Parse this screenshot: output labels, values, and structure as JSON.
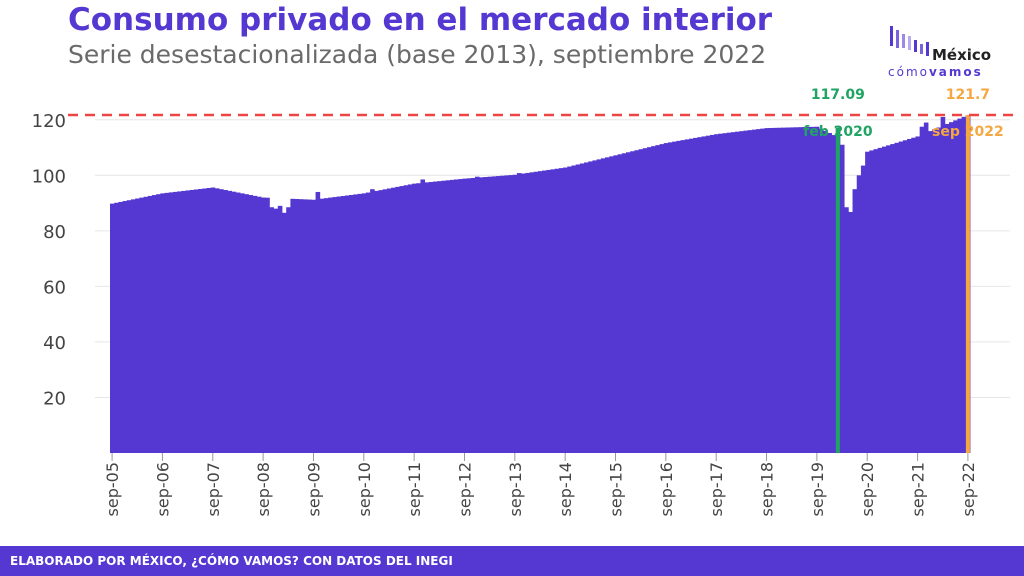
{
  "header": {
    "title": "Consumo privado en el mercado interior",
    "subtitle": "Serie desestacionalizada (base 2013), septiembre 2022"
  },
  "logo": {
    "top": "México",
    "bottom_light": "cómo",
    "bottom_bold": "vamos"
  },
  "footer": {
    "text": "ELABORADO POR MÉXICO, ¿CÓMO VAMOS? CON DATOS DEL INEGI"
  },
  "colors": {
    "bar": "#5438d1",
    "reference_line": "#f04444",
    "highlight_feb2020": "#1fa463",
    "highlight_latest": "#f5a742",
    "grid": "#e6e6e6",
    "axis_text": "#444444"
  },
  "chart_data": {
    "type": "bar",
    "title": "Consumo privado en el mercado interior",
    "subtitle": "Serie desestacionalizada (base 2013), septiembre 2022",
    "xlabel": "",
    "ylabel": "",
    "ylim": [
      0,
      130
    ],
    "yticks": [
      20,
      40,
      60,
      80,
      100,
      120
    ],
    "xtick_labels": [
      "sep-05",
      "sep-06",
      "sep-07",
      "sep-08",
      "sep-09",
      "sep-10",
      "sep-11",
      "sep-12",
      "sep-13",
      "sep-14",
      "sep-15",
      "sep-16",
      "sep-17",
      "sep-18",
      "sep-19",
      "sep-20",
      "sep-21",
      "sep-22"
    ],
    "reference_line": 121.7,
    "grid": true,
    "start": "sep-05",
    "end": "sep-22",
    "annual_values": {
      "sep-05": 89.8,
      "sep-06": 93.5,
      "sep-07": 95.6,
      "sep-08": 92.0,
      "sep-09": 91.2,
      "sep-10": 93.5,
      "sep-11": 97.0,
      "sep-12": 98.8,
      "sep-13": 100.2,
      "sep-14": 102.8,
      "sep-15": 107.2,
      "sep-16": 111.6,
      "sep-17": 114.8,
      "sep-18": 117.0,
      "sep-19": 117.5,
      "sep-20": 108.5,
      "sep-21": 114.0,
      "sep-22": 121.7
    },
    "monthly_adjustments": {
      "2008-11": 88.5,
      "2008-12": 88.0,
      "2009-01": 89.0,
      "2009-02": 86.5,
      "2009-03": 88.5,
      "2009-10": 94.0,
      "2010-11": 95.0,
      "2011-11": 98.5,
      "2012-12": 99.5,
      "2013-10": 100.8,
      "2020-02": 117.09,
      "2020-03": 111.0,
      "2020-04": 88.5,
      "2020-05": 86.8,
      "2020-06": 95.0,
      "2020-07": 100.0,
      "2020-08": 103.5,
      "2021-10": 117.5,
      "2021-11": 119.0,
      "2022-03": 121.0
    },
    "annotations": [
      {
        "label_value": "117.09",
        "label_period": "feb 2020",
        "period": "2020-02",
        "value": 117.09
      },
      {
        "label_value": "121.7",
        "label_period": "sep 2022",
        "period": "2022-09",
        "value": 121.7
      }
    ]
  }
}
